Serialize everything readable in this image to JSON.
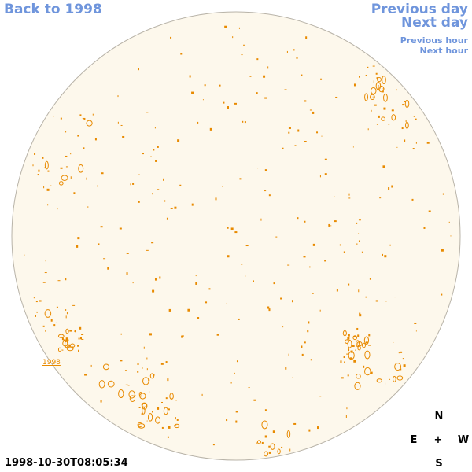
{
  "nav": {
    "back_label": "Back to 1998",
    "previous_day_label": "Previous day",
    "next_day_label": "Next day",
    "previous_hour_label": "Previous hour",
    "next_hour_label": "Next hour"
  },
  "timestamp": "1998-10-30T08:05:34",
  "region_label": "1998",
  "compass": {
    "north": "N",
    "east": "E",
    "center": "+",
    "west": "W",
    "south": "S"
  },
  "colors": {
    "disk_fill": "#fdf8ec",
    "disk_stroke": "#b8b3a8",
    "feature": "#e88a00",
    "link": "#6f95dc"
  }
}
